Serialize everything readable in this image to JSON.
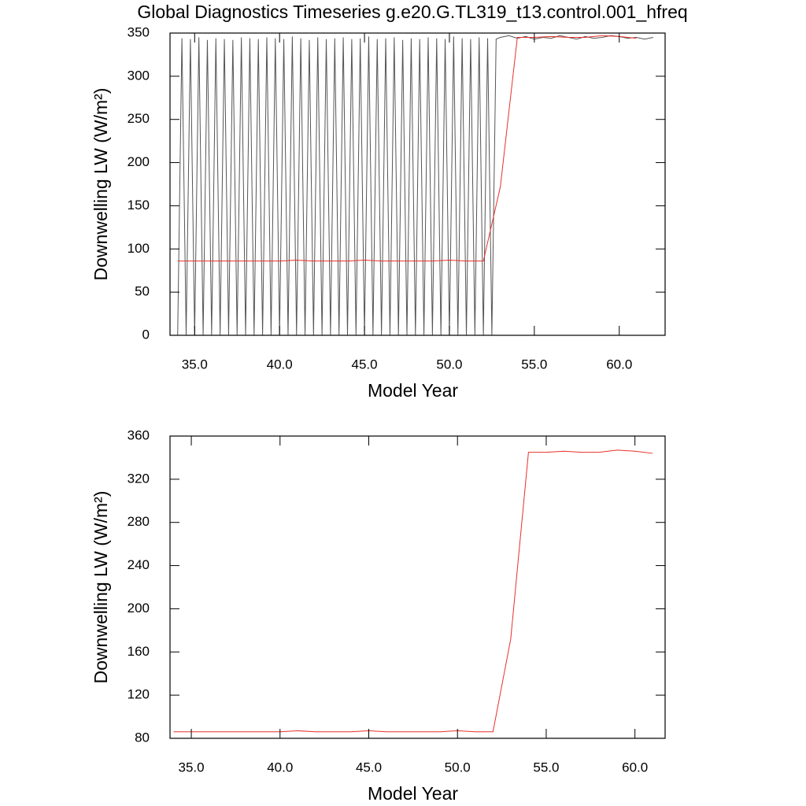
{
  "chart_data": [
    {
      "type": "line",
      "title": "Global Diagnostics Timeseries g.e20.G.TL319_t13.control.001_hfreq",
      "xlabel": "Model Year",
      "ylabel": "Downwelling LW (W/m²)",
      "xlim": [
        33.55,
        62.7
      ],
      "ylim": [
        0,
        350
      ],
      "xticks": [
        {
          "value": 35,
          "label": "35.0"
        },
        {
          "value": 40,
          "label": "40.0"
        },
        {
          "value": 45,
          "label": "45.0"
        },
        {
          "value": 50,
          "label": "50.0"
        },
        {
          "value": 55,
          "label": "55.0"
        },
        {
          "value": 60,
          "label": "60.0"
        }
      ],
      "yticks": [
        0,
        50,
        100,
        150,
        200,
        250,
        300,
        350
      ],
      "series": [
        {
          "color": "#555555",
          "x": [
            34,
            34.25,
            34.5,
            34.75,
            35,
            35.25,
            35.5,
            35.75,
            36,
            36.25,
            36.5,
            36.75,
            37,
            37.25,
            37.5,
            37.75,
            38,
            38.25,
            38.5,
            38.75,
            39,
            39.25,
            39.5,
            39.75,
            40,
            40.25,
            40.5,
            40.75,
            41,
            41.25,
            41.5,
            41.75,
            42,
            42.25,
            42.5,
            42.75,
            43,
            43.25,
            43.5,
            43.75,
            44,
            44.25,
            44.5,
            44.75,
            45,
            45.25,
            45.5,
            45.75,
            46,
            46.25,
            46.5,
            46.75,
            47,
            47.25,
            47.5,
            47.75,
            48,
            48.25,
            48.5,
            48.75,
            49,
            49.25,
            49.5,
            49.75,
            50,
            50.25,
            50.5,
            50.75,
            51,
            51.25,
            51.5,
            51.75,
            52,
            52.25,
            52.5,
            52.75,
            53,
            53.5,
            54,
            54.5,
            55,
            55.5,
            56,
            56.5,
            57,
            57.5,
            58,
            58.5,
            59,
            59.5,
            60,
            60.5,
            61,
            61.5,
            62
          ],
          "values": [
            0,
            344,
            0,
            343,
            0,
            345,
            0,
            342,
            0,
            344,
            0,
            343,
            0,
            342,
            0,
            345,
            0,
            344,
            0,
            343,
            0,
            345,
            0,
            344,
            0,
            343,
            0,
            346,
            0,
            344,
            0,
            342,
            0,
            345,
            0,
            343,
            0,
            344,
            0,
            345,
            0,
            343,
            0,
            344,
            0,
            346,
            0,
            343,
            0,
            344,
            0,
            345,
            0,
            342,
            0,
            344,
            0,
            343,
            0,
            345,
            0,
            344,
            0,
            343,
            0,
            346,
            0,
            344,
            0,
            343,
            0,
            345,
            0,
            344,
            0,
            343,
            345,
            347,
            344,
            346,
            343,
            345,
            344,
            347,
            345,
            343,
            346,
            344,
            345,
            347,
            346,
            344,
            345,
            343,
            345
          ]
        },
        {
          "color": "#e8302a",
          "x": [
            34,
            35,
            36,
            37,
            38,
            39,
            40,
            41,
            42,
            43,
            44,
            45,
            46,
            47,
            48,
            49,
            50,
            51,
            52,
            53,
            54,
            55,
            56,
            57,
            58,
            59,
            60,
            61
          ],
          "values": [
            86,
            86,
            86,
            86,
            86,
            86,
            86,
            87,
            86,
            86,
            86,
            87,
            86,
            86,
            86,
            86,
            87,
            86,
            86,
            172,
            345,
            345,
            346,
            345,
            345,
            347,
            346,
            344
          ]
        }
      ]
    },
    {
      "type": "line",
      "xlabel": "Model Year",
      "ylabel": "Downwelling LW (W/m²)",
      "xlim": [
        33.8,
        61.7
      ],
      "ylim": [
        80,
        360
      ],
      "xticks": [
        {
          "value": 35,
          "label": "35.0"
        },
        {
          "value": 40,
          "label": "40.0"
        },
        {
          "value": 45,
          "label": "45.0"
        },
        {
          "value": 50,
          "label": "50.0"
        },
        {
          "value": 55,
          "label": "55.0"
        },
        {
          "value": 60,
          "label": "60.0"
        }
      ],
      "yticks": [
        80,
        120,
        160,
        200,
        240,
        280,
        320,
        360
      ],
      "series": [
        {
          "color": "#e8302a",
          "x": [
            34,
            35,
            36,
            37,
            38,
            39,
            40,
            41,
            42,
            43,
            44,
            45,
            46,
            47,
            48,
            49,
            50,
            51,
            52,
            53,
            54,
            55,
            56,
            57,
            58,
            59,
            60,
            61
          ],
          "values": [
            86,
            86,
            86,
            86,
            86,
            86,
            86,
            87,
            86,
            86,
            86,
            87,
            86,
            86,
            86,
            86,
            87,
            86,
            86,
            172,
            345,
            345,
            346,
            345,
            345,
            347,
            346,
            344
          ]
        }
      ]
    }
  ]
}
